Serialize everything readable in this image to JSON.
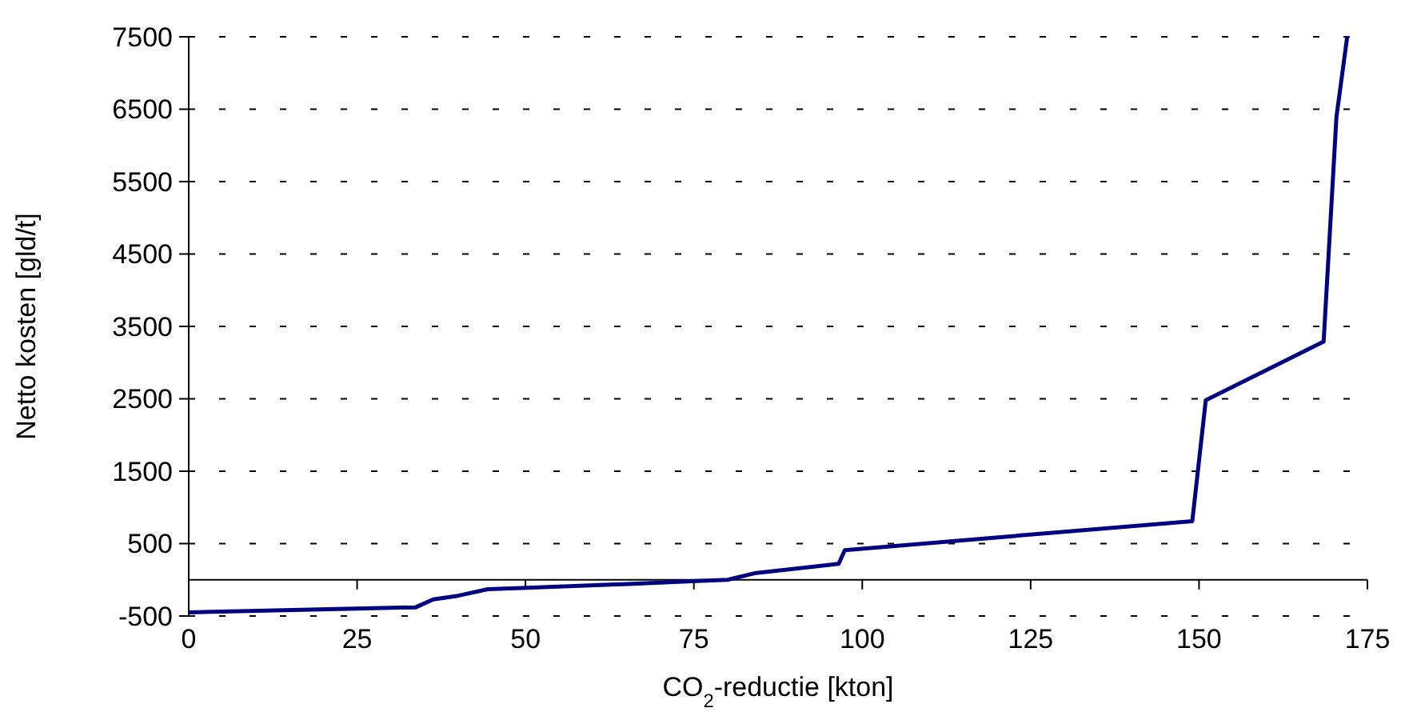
{
  "chart_data": {
    "type": "line",
    "xlabel": "CO$_{2}$-reductie [kton]",
    "ylabel": "Netto kosten [gld/t]",
    "xlim": [
      0,
      175
    ],
    "xticks": [
      0,
      25,
      50,
      75,
      100,
      125,
      150,
      175
    ],
    "ylim": [
      -500,
      7500
    ],
    "yticks": [
      -500,
      500,
      1500,
      2500,
      3500,
      4500,
      5500,
      6500,
      7500
    ],
    "grid": "y",
    "marker": "none",
    "line_style": "solid",
    "series": [
      {
        "color": "#000080",
        "x": [
          0,
          33.7,
          36.3,
          40,
          44.4,
          50.2,
          64.6,
          74.8,
          80,
          84,
          96.5,
          97.4,
          149,
          151,
          168.5,
          170.4,
          172
        ],
        "values": [
          -450,
          -380,
          -270,
          -220,
          -130,
          -110,
          -60,
          -20,
          0,
          90,
          220,
          410,
          810,
          2480,
          3290,
          6390,
          7500
        ]
      }
    ]
  }
}
